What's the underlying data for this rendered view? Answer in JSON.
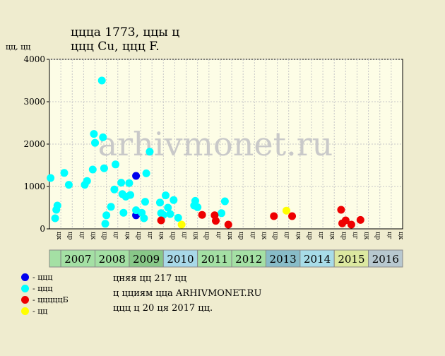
{
  "title_line1": "ццца 1773, ццы ц",
  "title_line2": "ццц Cu, ццц F.",
  "watermark": "arhivmonet.ru",
  "notes": [
    "цняя цц 217 цц",
    "ц цциям цца ARHIVMONET.RU",
    "ццц ц 20 ця 2017 цц."
  ],
  "colors": {
    "background": "#efeccf",
    "plot": "#fdfde6",
    "blue": "#0000ee",
    "cyan": "#00ffff",
    "red": "#ee0000",
    "yellow": "#ffff00"
  },
  "chart_data": {
    "type": "scatter",
    "ylabel": "цц, цц",
    "ylim": [
      0,
      4000
    ],
    "yticks": [
      0,
      1000,
      2000,
      3000,
      4000
    ],
    "grid": true,
    "x_periods": [
      {
        "year": "",
        "color": "#a4e0a4",
        "halves": [
          ""
        ]
      },
      {
        "year": "",
        "color": "#a4e0a4",
        "halves": [
          "цк"
        ]
      },
      {
        "year": "2007",
        "color": "#a4e0a4",
        "halves": [
          "цр",
          "цг",
          "цк"
        ]
      },
      {
        "year": "2008",
        "color": "#a4e0a4",
        "halves": [
          "цр",
          "цг",
          "цк"
        ]
      },
      {
        "year": "2009",
        "color": "#a4e0a4",
        "halves": [
          "цр",
          "цг",
          "цк"
        ]
      },
      {
        "year": "2010",
        "color": "#a4e0a4",
        "halves": [
          "цр",
          "цг",
          "цк"
        ]
      },
      {
        "year": "2011",
        "color": "#a4e0a4",
        "halves": [
          "цр",
          "цг",
          "цк"
        ]
      },
      {
        "year": "2012",
        "color": "#a4e0a4",
        "halves": [
          "цр",
          "цг",
          "цк"
        ]
      },
      {
        "year": "2013",
        "color": "#a4e0a4",
        "halves": [
          "цр",
          "цг",
          "цк"
        ]
      },
      {
        "year": "2014",
        "color": "#a4e0a4",
        "halves": [
          "цр",
          "цг",
          "цк"
        ]
      },
      {
        "year": "2015",
        "color": "#a4e0a4",
        "halves": [
          "цр",
          "цг",
          "цк"
        ]
      },
      {
        "year": "2016",
        "color": "#a4e0a4",
        "halves": [
          "цр",
          "цг",
          "цк"
        ]
      }
    ],
    "x_labels": [
      "цк",
      "цр",
      "цг",
      "цк",
      "цр",
      "цг",
      "цк",
      "цр",
      "цг",
      "цк",
      "цр",
      "цг",
      "цк",
      "цр",
      "цг",
      "цк",
      "цр",
      "цг",
      "цк",
      "цр",
      "цг",
      "цк",
      "цр",
      "цг",
      "цк",
      "цр",
      "цг",
      "цк",
      "цр",
      "цг",
      "цк",
      "цр",
      "цг",
      "цк"
    ],
    "years": [
      {
        "label": "2007",
        "span": [
          1,
          4
        ],
        "color": "#a4e0a4"
      },
      {
        "label": "2008",
        "span": [
          4,
          7
        ],
        "color": "#a4e0a4"
      },
      {
        "label": "2009",
        "span": [
          7,
          10
        ],
        "color": "#88c888"
      },
      {
        "label": "2010",
        "span": [
          10,
          13
        ],
        "color": "#a8d8e8"
      },
      {
        "label": "2011",
        "span": [
          13,
          16
        ],
        "color": "#a4e0a4"
      },
      {
        "label": "2012",
        "span": [
          16,
          19
        ],
        "color": "#a4e0a4"
      },
      {
        "label": "2013",
        "span": [
          19,
          22
        ],
        "color": "#88bcc8"
      },
      {
        "label": "2014",
        "span": [
          22,
          25
        ],
        "color": "#a8dce8"
      },
      {
        "label": "2015",
        "span": [
          25,
          28
        ],
        "color": "#dce8a0"
      },
      {
        "label": "2016",
        "span": [
          28,
          31
        ],
        "color": "#b8c8d0"
      }
    ],
    "first_bin_color": "#a4e0a4",
    "series": [
      {
        "name": "ццц",
        "color": "#0000ee",
        "points": [
          [
            7.6,
            1250
          ],
          [
            7.6,
            320
          ]
        ]
      },
      {
        "name": "ццц",
        "color": "#00ffff",
        "points": [
          [
            0.1,
            1200
          ],
          [
            0.5,
            250
          ],
          [
            0.6,
            450
          ],
          [
            0.7,
            550
          ],
          [
            1.3,
            1320
          ],
          [
            1.7,
            1040
          ],
          [
            3.1,
            1040
          ],
          [
            3.3,
            1130
          ],
          [
            3.8,
            1400
          ],
          [
            3.9,
            2240
          ],
          [
            4.0,
            2030
          ],
          [
            4.6,
            3500
          ],
          [
            4.7,
            2160
          ],
          [
            4.8,
            1430
          ],
          [
            4.9,
            120
          ],
          [
            5.0,
            320
          ],
          [
            5.4,
            520
          ],
          [
            5.7,
            930
          ],
          [
            5.8,
            1520
          ],
          [
            6.3,
            1090
          ],
          [
            6.4,
            820
          ],
          [
            6.5,
            380
          ],
          [
            6.7,
            760
          ],
          [
            7.0,
            1080
          ],
          [
            7.1,
            800
          ],
          [
            7.6,
            440
          ],
          [
            8.1,
            380
          ],
          [
            8.3,
            250
          ],
          [
            8.4,
            640
          ],
          [
            8.5,
            1310
          ],
          [
            8.8,
            1820
          ],
          [
            9.7,
            620
          ],
          [
            9.8,
            370
          ],
          [
            10.0,
            330
          ],
          [
            10.2,
            790
          ],
          [
            10.4,
            500
          ],
          [
            10.6,
            350
          ],
          [
            10.9,
            680
          ],
          [
            11.3,
            260
          ],
          [
            12.7,
            550
          ],
          [
            12.8,
            660
          ],
          [
            13.0,
            510
          ],
          [
            15.1,
            370
          ],
          [
            15.4,
            650
          ]
        ]
      },
      {
        "name": "цццццБ",
        "color": "#ee0000",
        "points": [
          [
            9.8,
            200
          ],
          [
            13.4,
            330
          ],
          [
            14.5,
            320
          ],
          [
            14.6,
            190
          ],
          [
            15.7,
            100
          ],
          [
            19.7,
            300
          ],
          [
            21.3,
            300
          ],
          [
            25.6,
            450
          ],
          [
            25.7,
            130
          ],
          [
            26.0,
            200
          ],
          [
            26.5,
            100
          ],
          [
            27.3,
            210
          ]
        ]
      },
      {
        "name": "цц",
        "color": "#ffff00",
        "points": [
          [
            11.6,
            100
          ],
          [
            20.8,
            430
          ]
        ]
      }
    ],
    "legend": [
      {
        "label": "- ццц",
        "color": "#0000ee"
      },
      {
        "label": "- ццц",
        "color": "#00ffff"
      },
      {
        "label": "- цццццБ",
        "color": "#ee0000"
      },
      {
        "label": "- цц",
        "color": "#ffff00"
      }
    ]
  }
}
